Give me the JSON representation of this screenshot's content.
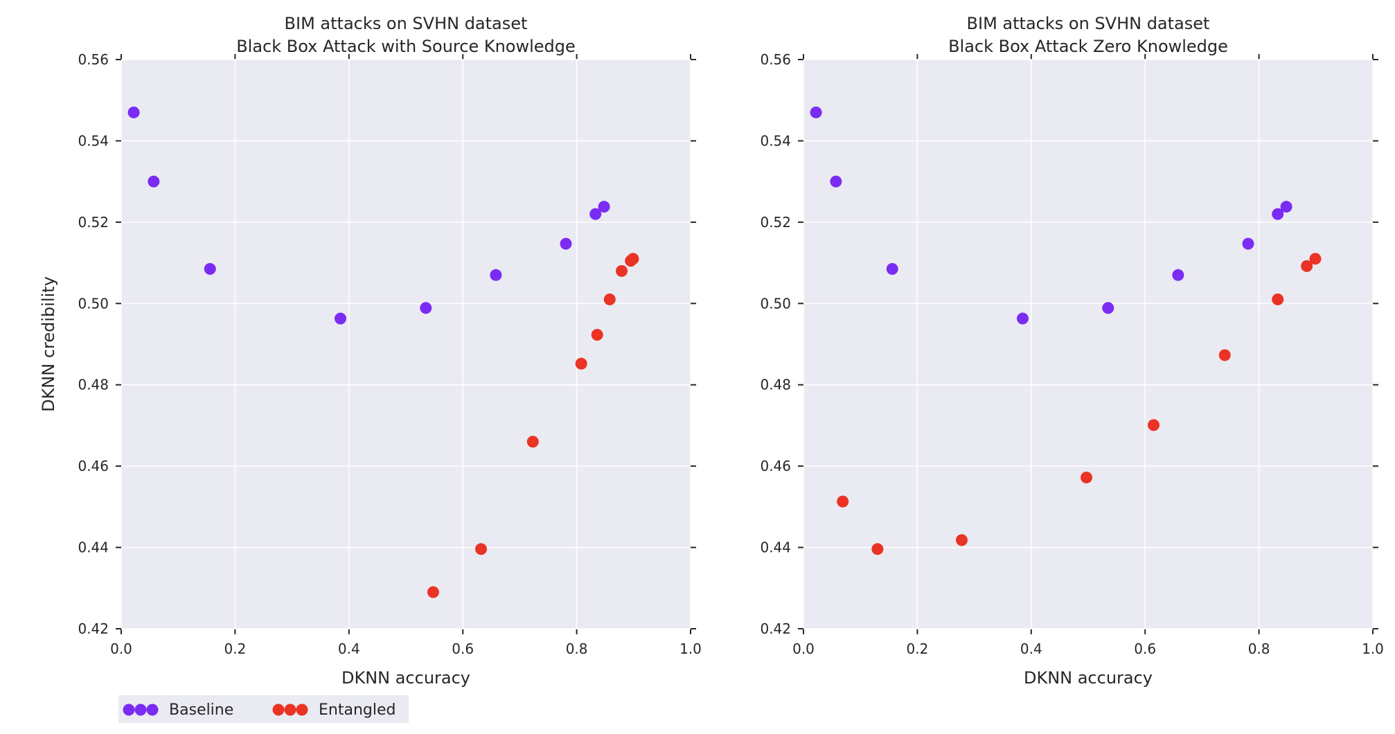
{
  "colors": {
    "baseline": "#7b2cf2",
    "entangled": "#ea3324",
    "plot_background": "#eaeaf2",
    "grid": "#ffffff"
  },
  "legend": {
    "placement": "below-left",
    "entries": [
      "Baseline",
      "Entangled"
    ]
  },
  "chart_data": [
    {
      "type": "scatter",
      "title": "BIM attacks on SVHN dataset",
      "subtitle": "Black Box Attack with Source Knowledge",
      "xlabel": "DKNN accuracy",
      "ylabel": "DKNN credibility",
      "xlim": [
        0.0,
        1.0
      ],
      "ylim": [
        0.42,
        0.56
      ],
      "xticks": [
        "0.0",
        "0.2",
        "0.4",
        "0.6",
        "0.8",
        "1.0"
      ],
      "yticks": [
        "0.42",
        "0.44",
        "0.46",
        "0.48",
        "0.50",
        "0.52",
        "0.54",
        "0.56"
      ],
      "grid": true,
      "series": [
        {
          "name": "Baseline",
          "x": [
            0.022,
            0.057,
            0.156,
            0.385,
            0.535,
            0.658,
            0.781,
            0.833,
            0.848
          ],
          "y": [
            0.547,
            0.53,
            0.5085,
            0.4963,
            0.4989,
            0.507,
            0.5147,
            0.522,
            0.5238
          ]
        },
        {
          "name": "Entangled",
          "x": [
            0.548,
            0.632,
            0.723,
            0.808,
            0.836,
            0.858,
            0.879,
            0.895,
            0.899
          ],
          "y": [
            0.429,
            0.4396,
            0.466,
            0.4852,
            0.4923,
            0.501,
            0.508,
            0.5105,
            0.511
          ]
        }
      ]
    },
    {
      "type": "scatter",
      "title": "BIM attacks on SVHN dataset",
      "subtitle": "Black Box Attack Zero Knowledge",
      "xlabel": "DKNN accuracy",
      "ylabel": "",
      "xlim": [
        0.0,
        1.0
      ],
      "ylim": [
        0.42,
        0.56
      ],
      "xticks": [
        "0.0",
        "0.2",
        "0.4",
        "0.6",
        "0.8",
        "1.0"
      ],
      "yticks": [
        "0.42",
        "0.44",
        "0.46",
        "0.48",
        "0.50",
        "0.52",
        "0.54",
        "0.56"
      ],
      "grid": true,
      "series": [
        {
          "name": "Baseline",
          "x": [
            0.022,
            0.057,
            0.156,
            0.385,
            0.535,
            0.658,
            0.781,
            0.833,
            0.848
          ],
          "y": [
            0.547,
            0.53,
            0.5085,
            0.4963,
            0.4989,
            0.507,
            0.5147,
            0.522,
            0.5238
          ]
        },
        {
          "name": "Entangled",
          "x": [
            0.069,
            0.13,
            0.278,
            0.497,
            0.615,
            0.74,
            0.833,
            0.884,
            0.899
          ],
          "y": [
            0.4513,
            0.4396,
            0.4418,
            0.4572,
            0.4701,
            0.4873,
            0.501,
            0.5092,
            0.511
          ]
        }
      ]
    }
  ]
}
